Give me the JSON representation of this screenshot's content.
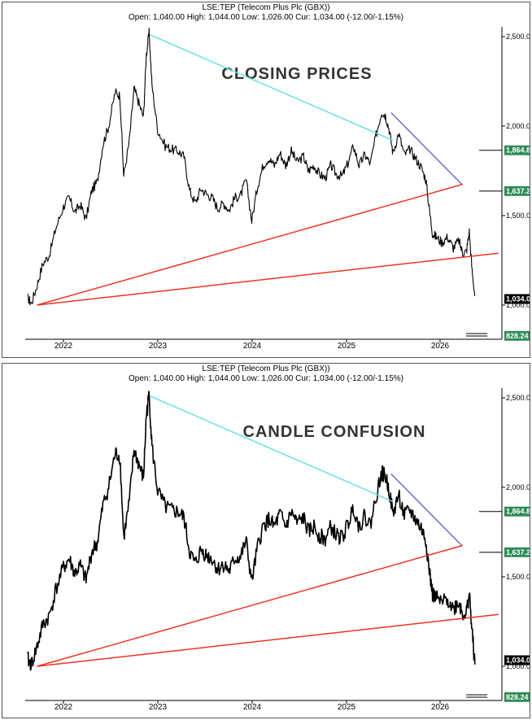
{
  "chart_data": [
    {
      "type": "line",
      "title": "CLOSING PRICES",
      "symbol_line": "LSE:TEP (Telecom Plus Plc (GBX))",
      "quote_line": "Open: 1,040.00 High: 1,044.00 Low: 1,026.00 Cur: 1,034.00 (-12.00/-1.15%)",
      "x_ticks": [
        "2022",
        "2023",
        "2024",
        "2025",
        "2026"
      ],
      "y_ticks": [
        "2,500.00",
        "2,000.00",
        "1,500.00",
        "1,000.00"
      ],
      "ylim": [
        770,
        2520
      ],
      "xlim": [
        2021.6,
        2026.55
      ],
      "series": [
        {
          "x": [
            2021.62,
            2021.66,
            2021.72,
            2021.78,
            2021.85,
            2021.92,
            2022.0,
            2022.06,
            2022.12,
            2022.18,
            2022.24,
            2022.3,
            2022.36,
            2022.42,
            2022.48,
            2022.55,
            2022.6,
            2022.64,
            2022.7,
            2022.75,
            2022.8,
            2022.85,
            2022.88,
            2022.91,
            2022.94,
            2023.0,
            2023.08,
            2023.15,
            2023.22,
            2023.28,
            2023.34,
            2023.4,
            2023.46,
            2023.52,
            2023.58,
            2023.64,
            2023.7,
            2023.76,
            2023.82,
            2023.88,
            2023.94,
            2024.0,
            2024.06,
            2024.12,
            2024.18,
            2024.24,
            2024.3,
            2024.36,
            2024.42,
            2024.48,
            2024.55,
            2024.6,
            2024.66,
            2024.72,
            2024.78,
            2024.84,
            2024.9,
            2024.96,
            2025.02,
            2025.08,
            2025.14,
            2025.2,
            2025.26,
            2025.32,
            2025.38,
            2025.42,
            2025.46,
            2025.5,
            2025.56,
            2025.62,
            2025.68,
            2025.74,
            2025.8,
            2025.85,
            2025.88,
            2025.92,
            2025.96,
            2026.02,
            2026.08,
            2026.14,
            2026.2,
            2026.24,
            2026.28,
            2026.31,
            2026.34,
            2026.37
          ],
          "y": [
            1040,
            1010,
            1110,
            1230,
            1280,
            1430,
            1550,
            1600,
            1520,
            1560,
            1480,
            1640,
            1690,
            1900,
            2000,
            2190,
            2170,
            1720,
            1920,
            2210,
            2130,
            2050,
            2400,
            2520,
            2230,
            1980,
            1890,
            1870,
            1860,
            1830,
            1640,
            1570,
            1650,
            1620,
            1600,
            1540,
            1570,
            1530,
            1600,
            1610,
            1700,
            1470,
            1660,
            1780,
            1820,
            1780,
            1850,
            1780,
            1860,
            1800,
            1830,
            1750,
            1780,
            1730,
            1710,
            1780,
            1730,
            1720,
            1790,
            1890,
            1780,
            1840,
            1790,
            1950,
            2080,
            2060,
            1980,
            1850,
            1960,
            1840,
            1870,
            1820,
            1770,
            1700,
            1560,
            1400,
            1380,
            1350,
            1380,
            1320,
            1360,
            1290,
            1300,
            1410,
            1190,
            1050
          ]
        }
      ],
      "trendlines": [
        {
          "color": "#66e0e0",
          "x": [
            2022.92,
            2025.5
          ],
          "y": [
            2510,
            1920
          ]
        },
        {
          "color": "#6a6ad0",
          "x": [
            2025.48,
            2026.23
          ],
          "y": [
            2075,
            1675
          ]
        },
        {
          "color": "#ee3322",
          "x": [
            2021.72,
            2026.24
          ],
          "y": [
            1000,
            1675
          ]
        },
        {
          "color": "#ee3322",
          "x": [
            2021.72,
            2026.62
          ],
          "y": [
            1000,
            1290
          ]
        }
      ],
      "price_tags": [
        {
          "label": "1,864.8",
          "value": 1864.8,
          "color": "#2e8b57"
        },
        {
          "label": "1,637.2",
          "value": 1637.2,
          "color": "#2e8b57"
        },
        {
          "label": "1,034.0",
          "value": 1034.0,
          "color": "#000000"
        },
        {
          "label": "828.24",
          "value": 828.24,
          "color": "#2e8b57"
        }
      ]
    },
    {
      "type": "line",
      "title": "CANDLE CONFUSION",
      "symbol_line": "LSE:TEP (Telecom Plus Plc (GBX))",
      "quote_line": "Open: 1,040.00 High: 1,044.00 Low: 1,026.00 Cur: 1,034.00 (-12.00/-1.15%)",
      "x_ticks": [
        "2022",
        "2023",
        "2024",
        "2025",
        "2026"
      ],
      "y_ticks": [
        "2,500.00",
        "2,000.00",
        "1,500.00",
        "1,000.00"
      ],
      "ylim": [
        770,
        2520
      ],
      "xlim": [
        2021.6,
        2026.55
      ],
      "series": [
        {
          "x": [
            2021.62,
            2021.66,
            2021.72,
            2021.78,
            2021.85,
            2021.92,
            2022.0,
            2022.06,
            2022.12,
            2022.18,
            2022.24,
            2022.3,
            2022.36,
            2022.42,
            2022.48,
            2022.55,
            2022.6,
            2022.64,
            2022.7,
            2022.75,
            2022.8,
            2022.85,
            2022.88,
            2022.91,
            2022.94,
            2023.0,
            2023.08,
            2023.15,
            2023.22,
            2023.28,
            2023.34,
            2023.4,
            2023.46,
            2023.52,
            2023.58,
            2023.64,
            2023.7,
            2023.76,
            2023.82,
            2023.88,
            2023.94,
            2024.0,
            2024.06,
            2024.12,
            2024.18,
            2024.24,
            2024.3,
            2024.36,
            2024.42,
            2024.48,
            2024.55,
            2024.6,
            2024.66,
            2024.72,
            2024.78,
            2024.84,
            2024.9,
            2024.96,
            2025.02,
            2025.08,
            2025.14,
            2025.2,
            2025.26,
            2025.32,
            2025.38,
            2025.42,
            2025.46,
            2025.5,
            2025.56,
            2025.62,
            2025.68,
            2025.74,
            2025.8,
            2025.85,
            2025.88,
            2025.92,
            2025.96,
            2026.02,
            2026.08,
            2026.14,
            2026.2,
            2026.24,
            2026.28,
            2026.31,
            2026.34,
            2026.37
          ],
          "y": [
            1040,
            1010,
            1110,
            1230,
            1280,
            1430,
            1550,
            1600,
            1520,
            1560,
            1480,
            1640,
            1690,
            1900,
            2000,
            2190,
            2170,
            1720,
            1920,
            2210,
            2130,
            2050,
            2400,
            2520,
            2230,
            1980,
            1890,
            1870,
            1860,
            1830,
            1640,
            1570,
            1650,
            1620,
            1600,
            1540,
            1570,
            1530,
            1600,
            1610,
            1700,
            1470,
            1660,
            1780,
            1820,
            1780,
            1850,
            1780,
            1860,
            1800,
            1830,
            1750,
            1780,
            1730,
            1710,
            1780,
            1730,
            1720,
            1790,
            1890,
            1780,
            1840,
            1790,
            1950,
            2080,
            2060,
            1980,
            1850,
            1960,
            1840,
            1870,
            1820,
            1770,
            1700,
            1560,
            1400,
            1380,
            1350,
            1380,
            1320,
            1360,
            1290,
            1300,
            1410,
            1190,
            1010
          ]
        }
      ],
      "trendlines": [
        {
          "color": "#66e0e0",
          "x": [
            2022.92,
            2025.5
          ],
          "y": [
            2510,
            1920
          ]
        },
        {
          "color": "#6a6ad0",
          "x": [
            2025.48,
            2026.23
          ],
          "y": [
            2075,
            1675
          ]
        },
        {
          "color": "#ee3322",
          "x": [
            2021.72,
            2026.24
          ],
          "y": [
            1000,
            1675
          ]
        },
        {
          "color": "#ee3322",
          "x": [
            2021.72,
            2026.62
          ],
          "y": [
            1000,
            1290
          ]
        }
      ],
      "price_tags": [
        {
          "label": "1,864.8",
          "value": 1864.8,
          "color": "#2e8b57"
        },
        {
          "label": "1,637.2",
          "value": 1637.2,
          "color": "#2e8b57"
        },
        {
          "label": "1,034.0",
          "value": 1034.0,
          "color": "#000000"
        },
        {
          "label": "828.24",
          "value": 828.24,
          "color": "#2e8b57"
        }
      ]
    }
  ],
  "colors": {
    "price_line": "#000000",
    "resistance_line": "#66e0e0",
    "short_trend_line": "#6a6ad0",
    "support_line": "#ee3322",
    "target_tag": "#2e8b57",
    "title_text": "#333333"
  }
}
